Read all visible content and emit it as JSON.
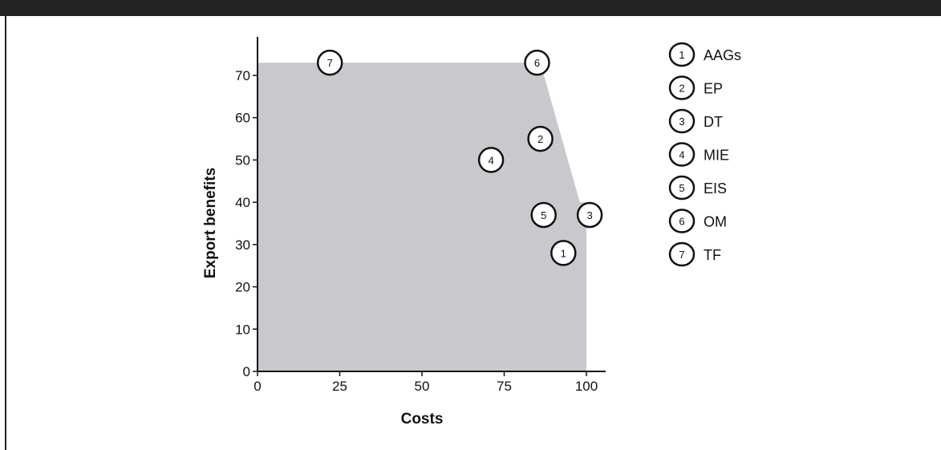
{
  "chart_data": {
    "type": "scatter",
    "title": "",
    "xlabel": "Costs",
    "ylabel": "Export benefits",
    "xlim": [
      0,
      105
    ],
    "ylim": [
      0,
      78
    ],
    "xticks": [
      "0",
      "25",
      "50",
      "75",
      "100"
    ],
    "yticks": [
      "0",
      "10",
      "20",
      "30",
      "40",
      "50",
      "60",
      "70"
    ],
    "points": [
      {
        "id": "1",
        "label": "AAGs",
        "x": 93,
        "y": 28
      },
      {
        "id": "2",
        "label": "EP",
        "x": 86,
        "y": 55
      },
      {
        "id": "3",
        "label": "DT",
        "x": 101,
        "y": 37
      },
      {
        "id": "4",
        "label": "MIE",
        "x": 71,
        "y": 50
      },
      {
        "id": "5",
        "label": "EIS",
        "x": 87,
        "y": 37
      },
      {
        "id": "6",
        "label": "OM",
        "x": 85,
        "y": 73
      },
      {
        "id": "7",
        "label": "TF",
        "x": 22,
        "y": 73
      }
    ],
    "frontier": [
      {
        "x": 0,
        "y": 73
      },
      {
        "x": 86,
        "y": 73
      },
      {
        "x": 98,
        "y": 40
      },
      {
        "x": 100,
        "y": 40
      },
      {
        "x": 100,
        "y": 0
      },
      {
        "x": 0,
        "y": 0
      }
    ],
    "legend_placement": "right",
    "colors": {
      "region": "#c9c8cc",
      "axis": "#111111",
      "background": "#ffffff",
      "frame": "#232323"
    }
  }
}
